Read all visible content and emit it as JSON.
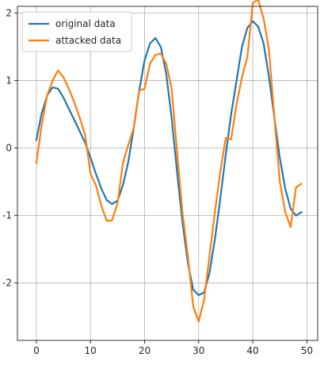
{
  "chart_data": {
    "type": "line",
    "title": "",
    "xlabel": "",
    "ylabel": "",
    "xlim": [
      -3.5,
      52
    ],
    "ylim": [
      -2.85,
      2.1
    ],
    "xticks": [
      0,
      10,
      20,
      30,
      40,
      50
    ],
    "xtick_labels": [
      "0",
      "10",
      "20",
      "30",
      "40",
      "50"
    ],
    "yticks": [
      -2,
      -1,
      0,
      1,
      2
    ],
    "ytick_labels": [
      "-2",
      "-1",
      "0",
      "1",
      "2"
    ],
    "grid": true,
    "legend_position": "top-left",
    "x": [
      0,
      1,
      2,
      3,
      4,
      5,
      6,
      7,
      8,
      9,
      10,
      11,
      12,
      13,
      14,
      15,
      16,
      17,
      18,
      19,
      20,
      21,
      22,
      23,
      24,
      25,
      26,
      27,
      28,
      29,
      30,
      31,
      32,
      33,
      34,
      35,
      36,
      37,
      38,
      39,
      40,
      41,
      42,
      43,
      44,
      45,
      46,
      47,
      48,
      49
    ],
    "series": [
      {
        "name": "original data",
        "color": "#1f77b4",
        "values": [
          0.12,
          0.52,
          0.78,
          0.9,
          0.88,
          0.75,
          0.58,
          0.42,
          0.25,
          0.08,
          -0.14,
          -0.38,
          -0.6,
          -0.77,
          -0.83,
          -0.78,
          -0.55,
          -0.2,
          0.3,
          0.85,
          1.3,
          1.55,
          1.63,
          1.5,
          1.1,
          0.45,
          -0.35,
          -1.1,
          -1.7,
          -2.1,
          -2.18,
          -2.14,
          -1.85,
          -1.35,
          -0.75,
          -0.1,
          0.5,
          1.0,
          1.5,
          1.78,
          1.88,
          1.8,
          1.55,
          1.05,
          0.45,
          -0.15,
          -0.6,
          -0.9,
          -1.0,
          -0.95
        ]
      },
      {
        "name": "attacked data",
        "color": "#ff7f0e",
        "values": [
          -0.22,
          0.35,
          0.78,
          1.0,
          1.15,
          1.05,
          0.88,
          0.68,
          0.45,
          0.2,
          -0.38,
          -0.55,
          -0.85,
          -1.08,
          -1.07,
          -0.82,
          -0.22,
          0.05,
          0.3,
          0.85,
          0.88,
          1.25,
          1.38,
          1.4,
          1.25,
          0.88,
          -0.05,
          -0.95,
          -1.6,
          -2.35,
          -2.57,
          -2.25,
          -1.6,
          -0.95,
          -0.35,
          0.15,
          0.13,
          0.65,
          1.05,
          1.35,
          2.15,
          2.2,
          1.92,
          1.45,
          0.45,
          -0.5,
          -0.95,
          -1.17,
          -0.58,
          -0.53
        ]
      }
    ]
  }
}
